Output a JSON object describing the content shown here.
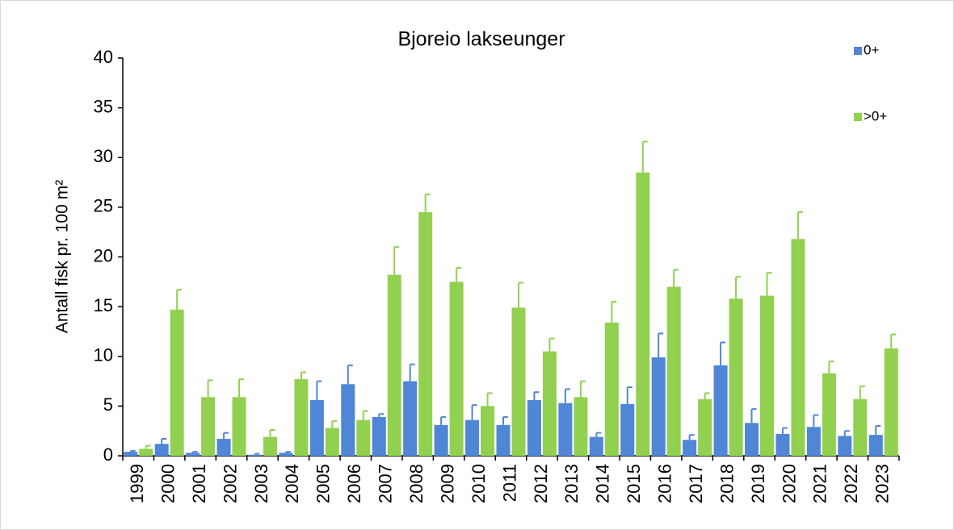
{
  "chart_data": {
    "type": "bar",
    "title": "Bjoreio lakseunger",
    "y_label": "Antall fisk pr. 100 m²",
    "categories": [
      "1999",
      "2000",
      "2001",
      "2002",
      "2003",
      "2004",
      "2005",
      "2006",
      "2007",
      "2008",
      "2009",
      "2010",
      "2011",
      "2012",
      "2013",
      "2014",
      "2015",
      "2016",
      "2017",
      "2018",
      "2019",
      "2020",
      "2021",
      "2022",
      "2023"
    ],
    "series": [
      {
        "name": "0+",
        "color": "#4f86d6",
        "values": [
          0.4,
          1.2,
          0.3,
          1.7,
          0.1,
          0.3,
          5.6,
          7.2,
          3.9,
          7.5,
          3.1,
          3.6,
          3.1,
          5.6,
          5.3,
          1.9,
          5.2,
          9.9,
          1.6,
          9.1,
          3.3,
          2.2,
          2.9,
          2.0,
          2.1
        ],
        "errors": [
          0.1,
          0.5,
          0.1,
          0.6,
          0.1,
          0.1,
          1.9,
          1.9,
          0.3,
          1.7,
          0.8,
          1.5,
          0.8,
          0.8,
          1.4,
          0.4,
          1.7,
          2.4,
          0.5,
          2.3,
          1.4,
          0.6,
          1.2,
          0.5,
          0.9
        ]
      },
      {
        "name": ">0+",
        "color": "#92d050",
        "values": [
          0.7,
          14.7,
          5.9,
          5.9,
          1.9,
          7.7,
          2.8,
          3.6,
          18.2,
          24.5,
          17.5,
          5.0,
          14.9,
          10.5,
          5.9,
          13.4,
          28.5,
          17.0,
          5.7,
          15.8,
          16.1,
          21.8,
          8.3,
          5.7,
          10.8
        ],
        "errors": [
          0.3,
          2.0,
          1.7,
          1.8,
          0.7,
          0.7,
          0.7,
          0.9,
          2.8,
          1.8,
          1.4,
          1.3,
          2.5,
          1.3,
          1.6,
          2.1,
          3.1,
          1.7,
          0.6,
          2.2,
          2.3,
          2.7,
          1.2,
          1.3,
          1.4
        ]
      }
    ],
    "ylim": [
      0,
      40
    ],
    "yticks": [
      0,
      5,
      10,
      15,
      20,
      25,
      30,
      35,
      40
    ],
    "legend": "right"
  }
}
